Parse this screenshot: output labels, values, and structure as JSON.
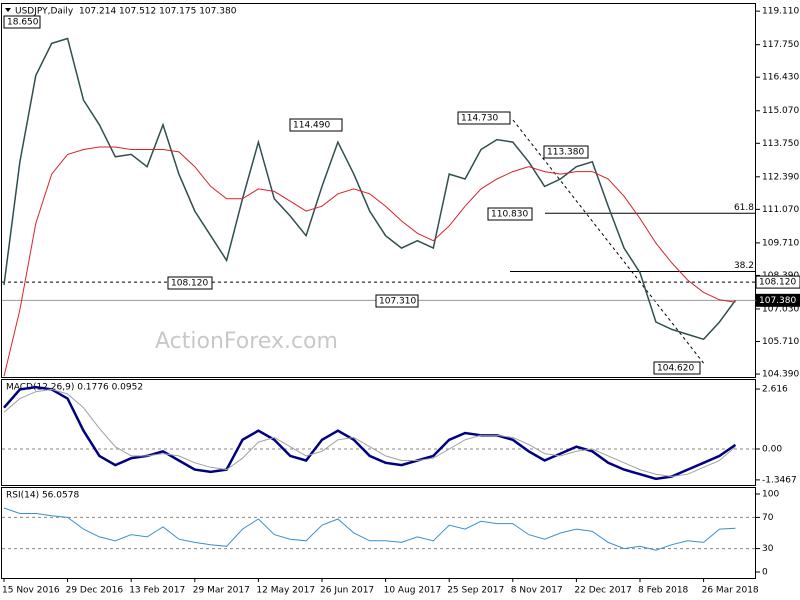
{
  "chart_data": [
    {
      "type": "line",
      "title": "USDJPY,Daily  107.214 107.512 107.175 107.380",
      "watermark": "ActionForex.com",
      "categories": [
        "15 Nov 2016",
        null,
        null,
        null,
        "29 Dec 2016",
        null,
        null,
        null,
        "13 Feb 2017",
        null,
        null,
        null,
        "29 Mar 2017",
        null,
        null,
        null,
        "12 May 2017",
        null,
        null,
        null,
        "26 Jun 2017",
        null,
        null,
        null,
        "10 Aug 2017",
        null,
        null,
        null,
        "25 Sep 2017",
        null,
        null,
        null,
        "8 Nov 2017",
        null,
        null,
        null,
        "22 Dec 2017",
        null,
        null,
        null,
        "8 Feb 2018",
        null,
        null,
        null,
        "26 Mar 2018",
        null,
        null
      ],
      "series": [
        {
          "color": "#2f4f4f",
          "values": [
            108.0,
            113.0,
            116.5,
            117.8,
            118.0,
            115.5,
            114.5,
            113.2,
            113.3,
            112.8,
            114.5,
            112.5,
            111.0,
            110.0,
            109.0,
            111.5,
            113.8,
            111.5,
            110.8,
            110.0,
            112.0,
            113.8,
            112.5,
            111.0,
            110.0,
            109.5,
            109.8,
            109.5,
            112.5,
            112.3,
            113.5,
            113.9,
            113.8,
            113.0,
            112.0,
            112.3,
            112.8,
            113.0,
            111.2,
            109.5,
            108.5,
            106.5,
            106.2,
            106.0,
            105.8,
            106.5,
            107.38
          ]
        },
        {
          "color": "#d8232a",
          "values": [
            104.3,
            107.0,
            110.5,
            112.5,
            113.3,
            113.5,
            113.6,
            113.6,
            113.5,
            113.5,
            113.5,
            113.4,
            112.8,
            112.0,
            111.5,
            111.5,
            111.9,
            111.8,
            111.4,
            111.0,
            111.2,
            111.7,
            111.9,
            111.7,
            111.2,
            110.6,
            110.1,
            109.8,
            110.4,
            111.2,
            111.9,
            112.3,
            112.6,
            112.8,
            112.6,
            112.5,
            112.6,
            112.6,
            112.3,
            111.6,
            110.7,
            109.7,
            108.9,
            108.2,
            107.7,
            107.4,
            107.3
          ]
        }
      ],
      "ylim": [
        104.27,
        119.4
      ],
      "yticks": [
        {
          "value": 104.39,
          "label": "104.390"
        },
        {
          "value": 105.71,
          "label": "105.710"
        },
        {
          "value": 107.03,
          "label": "107.030"
        },
        {
          "value": 108.39,
          "label": "108.390"
        },
        {
          "value": 109.71,
          "label": "109.710"
        },
        {
          "value": 111.07,
          "label": "111.070"
        },
        {
          "value": 112.39,
          "label": "112.390"
        },
        {
          "value": 113.75,
          "label": "113.750"
        },
        {
          "value": 115.07,
          "label": "115.070"
        },
        {
          "value": 116.43,
          "label": "116.430"
        },
        {
          "value": 117.75,
          "label": "117.750"
        },
        {
          "value": 119.11,
          "label": "119.110"
        }
      ],
      "levels": [
        {
          "value": 108.12,
          "label": "108.120",
          "dash": true
        },
        {
          "value": 107.38,
          "label": "107.380",
          "dash": false
        }
      ],
      "fib_levels": [
        {
          "value": 110.91,
          "label": "61.8"
        },
        {
          "value": 108.55,
          "label": "38.2"
        }
      ],
      "annotations": [
        "18.650",
        "114.490",
        "114.730",
        "113.380",
        "110.830",
        "108.120",
        "107.310",
        "104.620"
      ]
    },
    {
      "type": "line",
      "title": "MACD(12,26,9) 0.1776 0.0952",
      "series": [
        {
          "color": "#000080",
          "values": [
            1.8,
            2.6,
            2.7,
            2.6,
            2.2,
            0.8,
            -0.3,
            -0.7,
            -0.4,
            -0.3,
            -0.1,
            -0.5,
            -0.9,
            -1.0,
            -0.9,
            0.4,
            0.8,
            0.4,
            -0.3,
            -0.5,
            0.4,
            0.8,
            0.4,
            -0.3,
            -0.6,
            -0.7,
            -0.5,
            -0.3,
            0.4,
            0.7,
            0.6,
            0.6,
            0.4,
            -0.1,
            -0.5,
            -0.2,
            0.1,
            -0.1,
            -0.6,
            -0.9,
            -1.1,
            -1.3,
            -1.2,
            -0.9,
            -0.6,
            -0.3,
            0.1776
          ]
        },
        {
          "color": "#a0a0a0",
          "values": [
            1.6,
            2.2,
            2.5,
            2.6,
            2.4,
            1.8,
            0.9,
            0.1,
            -0.3,
            -0.3,
            -0.2,
            -0.3,
            -0.6,
            -0.8,
            -0.9,
            -0.4,
            0.3,
            0.5,
            0.1,
            -0.3,
            -0.1,
            0.4,
            0.5,
            0.1,
            -0.3,
            -0.5,
            -0.5,
            -0.4,
            0.0,
            0.4,
            0.6,
            0.6,
            0.5,
            0.2,
            -0.2,
            -0.3,
            -0.1,
            0.0,
            -0.3,
            -0.6,
            -0.9,
            -1.1,
            -1.2,
            -1.1,
            -0.8,
            -0.5,
            0.0952
          ]
        }
      ],
      "ylim": [
        -1.57,
        3.01
      ],
      "yticks": [
        2.616,
        {
          "value": 0,
          "label": "0.00"
        },
        -1.3467
      ],
      "grid_values": [
        0
      ]
    },
    {
      "type": "line",
      "title": "RSI(14) 56.0578",
      "series": [
        {
          "color": "#3a8fd0",
          "values": [
            82,
            75,
            75,
            72,
            70,
            55,
            45,
            40,
            48,
            45,
            58,
            42,
            38,
            35,
            33,
            55,
            68,
            48,
            42,
            40,
            60,
            68,
            50,
            40,
            40,
            38,
            45,
            40,
            60,
            55,
            65,
            62,
            62,
            48,
            42,
            50,
            55,
            52,
            38,
            30,
            33,
            28,
            35,
            40,
            38,
            55,
            56.0578
          ]
        }
      ],
      "ylim": [
        -7.7,
        107.7
      ],
      "yticks": [
        100,
        70,
        30,
        0
      ],
      "grid_values": [
        70,
        30
      ]
    }
  ]
}
